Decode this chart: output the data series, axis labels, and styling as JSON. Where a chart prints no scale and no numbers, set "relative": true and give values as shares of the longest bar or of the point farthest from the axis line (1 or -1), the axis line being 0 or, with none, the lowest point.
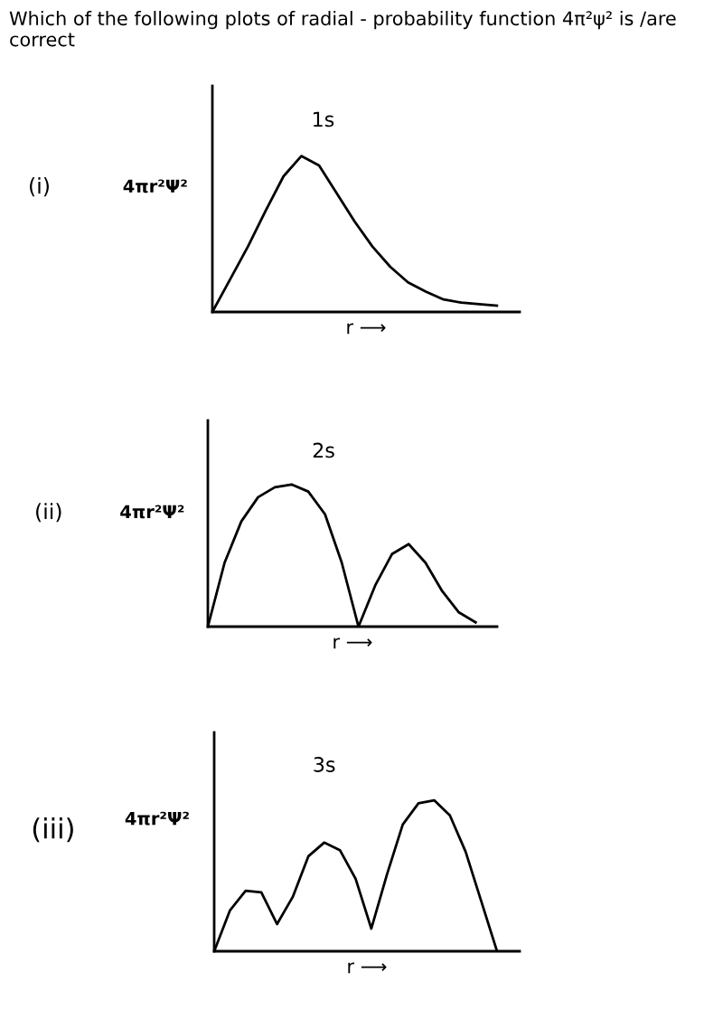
{
  "chart_data": [
    {
      "type": "line",
      "title": "Which of the following plots of radial - probability function 4π²ψ² is /are correct",
      "ylabel": "4πr²Ψ²",
      "xlabel": "r ⟶",
      "annotations": [
        "(i)",
        "1s"
      ],
      "relative": true,
      "color": "#000000",
      "categories": [
        null,
        null,
        null,
        null,
        null,
        null,
        null,
        null,
        null,
        null,
        null,
        null,
        null,
        null,
        null,
        null,
        null
      ],
      "values": [
        0,
        0.21,
        0.42,
        0.65,
        0.87,
        1,
        0.94,
        0.76,
        0.58,
        0.42,
        0.29,
        0.19,
        0.13,
        0.08,
        0.06,
        0.05,
        0.04
      ]
    },
    {
      "type": "line",
      "ylabel": "4πr²Ψ²",
      "xlabel": "r ⟶",
      "annotations": [
        "(ii)",
        "2s"
      ],
      "relative": true,
      "color": "#000000",
      "categories": [
        null,
        null,
        null,
        null,
        null,
        null,
        null,
        null,
        null,
        null,
        null,
        null,
        null,
        null,
        null,
        null,
        null
      ],
      "values": [
        0,
        0.45,
        0.74,
        0.91,
        0.98,
        1,
        0.95,
        0.79,
        0.45,
        0,
        0.29,
        0.51,
        0.58,
        0.45,
        0.25,
        0.1,
        0.03
      ]
    },
    {
      "type": "line",
      "ylabel": "4πr²Ψ²",
      "xlabel": "r ⟶",
      "annotations": [
        "(iii)",
        "3s"
      ],
      "relative": true,
      "color": "#000000",
      "categories": [
        null,
        null,
        null,
        null,
        null,
        null,
        null,
        null,
        null,
        null,
        null,
        null,
        null,
        null,
        null,
        null,
        null,
        null,
        null
      ],
      "values": [
        0,
        0.27,
        0.4,
        0.39,
        0.18,
        0.36,
        0.63,
        0.72,
        0.67,
        0.48,
        0.15,
        0.51,
        0.84,
        0.98,
        1,
        0.9,
        0.66,
        0.33,
        0
      ]
    }
  ]
}
